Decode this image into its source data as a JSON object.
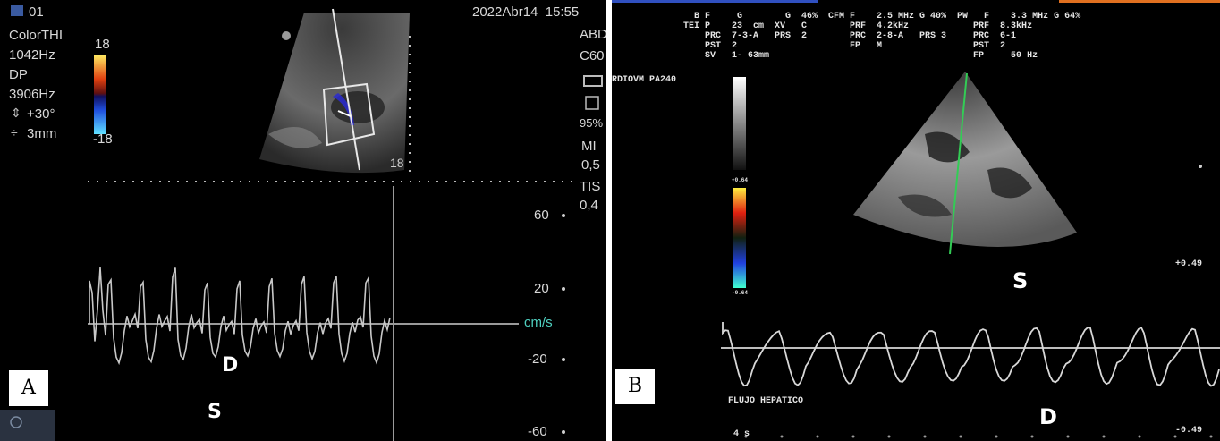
{
  "panel_a": {
    "label": "A",
    "header_left": "01",
    "header_right": "2022Abr14  15:55",
    "side_params": [
      "ColorTHI",
      "1042Hz",
      "DP",
      "3906Hz",
      "+30°",
      "3mm"
    ],
    "scale_top": "18",
    "scale_bottom": "-18",
    "image_depth": "18",
    "right_params": [
      "ABD",
      "C60",
      "95%",
      "MI",
      "0,5",
      "TIS",
      "0,4"
    ],
    "velocity_ticks": [
      "60",
      "20",
      "-20",
      "-60"
    ],
    "unit": "cm/s",
    "wave_labels": {
      "d": "D",
      "s": "S"
    },
    "colors": {
      "background": "#000000",
      "text": "#d8d8d8",
      "unit": "#4fd0c0"
    }
  },
  "panel_b": {
    "label": "B",
    "header_lines": [
      "  B F     G        G  46%  CFM F    2.5 MHz G 40%  PW   F    3.3 MHz G 64%",
      "TEI P    23  cm  XV   C        PRF  4.2kHz            PRF  8.3kHz",
      "    PRC  7-3-A   PRS  2        PRC  2-8-A   PRS 3     PRC  6-1",
      "    PST  2                     FP   M                 PST  2",
      "    SV   1- 63mm                                      FP     50 Hz"
    ],
    "probe_label": "RDIOVM PA240",
    "scale_top": "+0.64",
    "scale_bottom": "-0.64",
    "axis_top": "+0.49",
    "axis_bottom": "-0.49",
    "trace_title": "FLUJO HEPATICO",
    "time_label": "4 s",
    "wave_labels": {
      "s": "S",
      "d": "D"
    },
    "colors": {
      "background": "#000000",
      "text": "#e6e6e6",
      "line": "#33cc55"
    }
  }
}
